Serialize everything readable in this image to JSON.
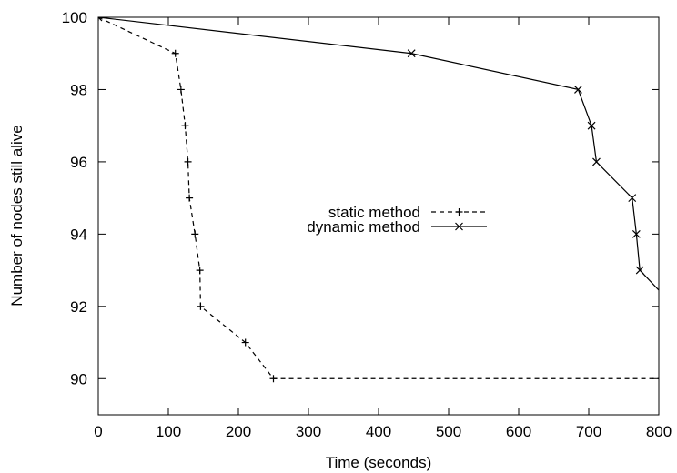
{
  "chart_data": {
    "type": "line",
    "title": "",
    "xlabel": "Time (seconds)",
    "ylabel": "Number of nodes still alive",
    "xlim": [
      0,
      800
    ],
    "ylim": [
      89,
      100
    ],
    "x_ticks": [
      0,
      100,
      200,
      300,
      400,
      500,
      600,
      700,
      800
    ],
    "y_ticks": [
      90,
      92,
      94,
      96,
      98,
      100
    ],
    "grid": false,
    "legend_position": "center",
    "series": [
      {
        "name": "static method",
        "line_style": "dashed",
        "marker": "plus",
        "color": "#000000",
        "points": [
          [
            0,
            100
          ],
          [
            110,
            99
          ],
          [
            118,
            98
          ],
          [
            124,
            97
          ],
          [
            128,
            96
          ],
          [
            130,
            95
          ],
          [
            138,
            94
          ],
          [
            145,
            93
          ],
          [
            146,
            92
          ],
          [
            210,
            91
          ],
          [
            250,
            90
          ],
          [
            800,
            90
          ]
        ],
        "marker_points": [
          [
            0,
            100
          ],
          [
            110,
            99
          ],
          [
            118,
            98
          ],
          [
            124,
            97
          ],
          [
            128,
            96
          ],
          [
            130,
            95
          ],
          [
            138,
            94
          ],
          [
            145,
            93
          ],
          [
            146,
            92
          ],
          [
            210,
            91
          ],
          [
            250,
            90
          ]
        ]
      },
      {
        "name": "dynamic method",
        "line_style": "solid",
        "marker": "cross",
        "color": "#000000",
        "points": [
          [
            0,
            100
          ],
          [
            447,
            99
          ],
          [
            685,
            98
          ],
          [
            704,
            97
          ],
          [
            711,
            96
          ],
          [
            762,
            95
          ],
          [
            768,
            94
          ],
          [
            773,
            93
          ],
          [
            800,
            92.45
          ]
        ],
        "marker_points": [
          [
            0,
            100
          ],
          [
            447,
            99
          ],
          [
            685,
            98
          ],
          [
            704,
            97
          ],
          [
            711,
            96
          ],
          [
            762,
            95
          ],
          [
            768,
            94
          ],
          [
            773,
            93
          ]
        ]
      }
    ]
  }
}
